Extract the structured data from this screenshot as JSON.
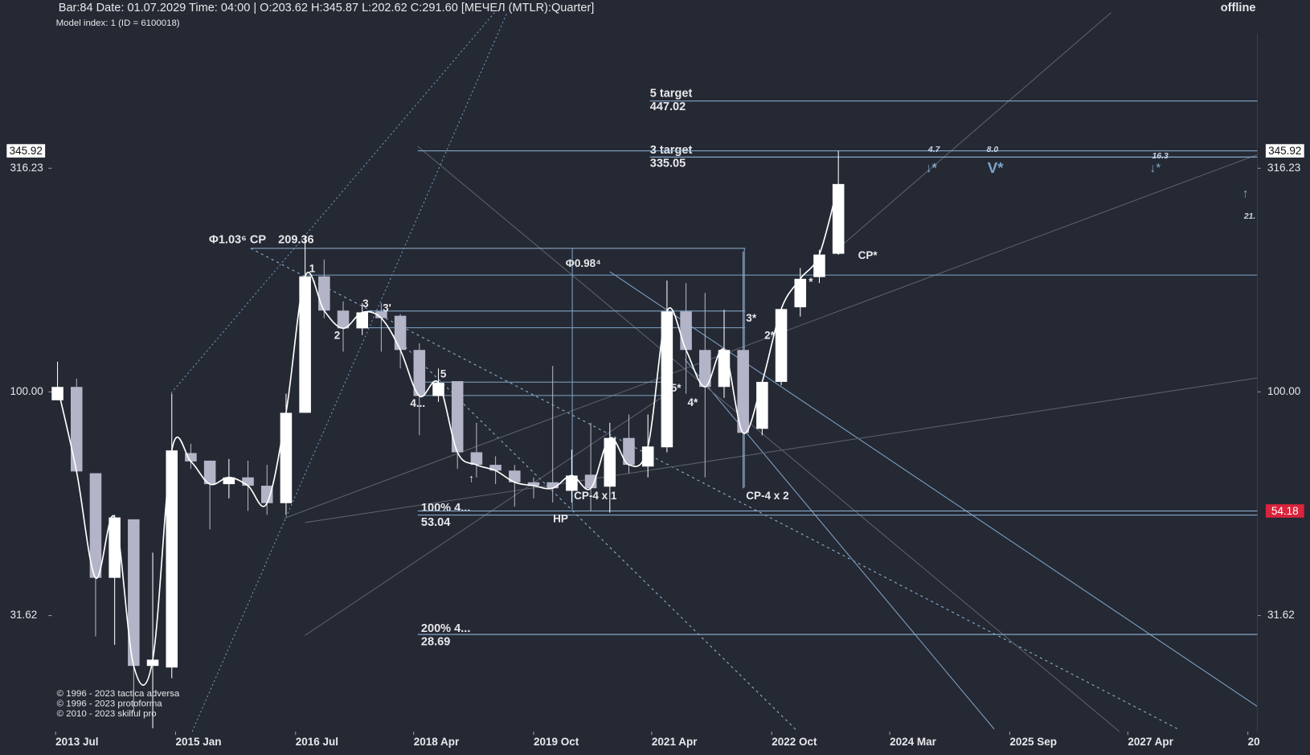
{
  "chart_data": {
    "type": "candlestick",
    "title": "Bar:84 Date: 01.07.2029 Time: 04:00 | O:203.62 H:345.87 L:202.62 C:291.60  [МЕЧЕЛ (MTLR):Quarter]",
    "subtitle": "Model index: 1  (ID = 6100018)",
    "status": "offline",
    "log_scale": true,
    "up_color": "#ffffff",
    "down_color": "#b3b4c7",
    "line_color": "#ffffff",
    "xlim": [
      -0.3,
      63
    ],
    "xticks": [
      {
        "value": -0.1,
        "label": "2013 Jul"
      },
      {
        "value": 6.2,
        "label": "2015 Jan"
      },
      {
        "value": 12.5,
        "label": "2016 Jul"
      },
      {
        "value": 18.7,
        "label": "2018 Apr"
      },
      {
        "value": 25,
        "label": "2019 Oct"
      },
      {
        "value": 31.2,
        "label": "2021 Apr"
      },
      {
        "value": 37.5,
        "label": "2022 Oct"
      },
      {
        "value": 43.7,
        "label": "2024 Mar"
      },
      {
        "value": 50,
        "label": "2025 Sep"
      },
      {
        "value": 56.2,
        "label": "2027 Apr"
      },
      {
        "value": 62.5,
        "label": "20"
      }
    ],
    "ylim": [
      17.4,
      752
    ],
    "yticks": [
      31.62,
      {
        "value": 100,
        "label": "100.00"
      },
      316.23
    ],
    "open": [
      95.8,
      102.6,
      65.8,
      38.4,
      51.9,
      24.4,
      24.2,
      73.0,
      70.2,
      62.2,
      64.4,
      61.7,
      56.4,
      89.8,
      181.3,
      152.0,
      138.7,
      151.3,
      148.0,
      124.1,
      97.9,
      105.7,
      73.3,
      68.7,
      66.7,
      62.8,
      62.8,
      60.1,
      65.3,
      61.4,
      78.9,
      68.1,
      75.2,
      151.3,
      124.1,
      102.6,
      124.1,
      82.7,
      105.3,
      154.6,
      180.6,
      203.62
    ],
    "high": [
      116.8,
      107.1,
      65.8,
      53.1,
      51.9,
      43.7,
      99.1,
      76.6,
      70.2,
      70.8,
      70.2,
      68.7,
      99.1,
      222.9,
      197.7,
      159.3,
      158.0,
      158.0,
      149.3,
      128.4,
      112.8,
      105.7,
      85.3,
      71.8,
      68.7,
      64.4,
      114.3,
      74.3,
      85.3,
      85.3,
      89.0,
      89.0,
      177.4,
      175.1,
      166.4,
      152.6,
      206.0,
      105.3,
      153.2,
      189.2,
      208.0,
      345.87
    ],
    "low": [
      95.8,
      66.4,
      28.4,
      27.2,
      19.3,
      17.7,
      22.9,
      67.3,
      49.3,
      57.8,
      54.2,
      53.1,
      53.1,
      89.8,
      146.2,
      123.0,
      134.0,
      123.0,
      112.8,
      80.0,
      95.0,
      67.3,
      64.4,
      62.2,
      55.4,
      57.8,
      56.6,
      56.6,
      54.2,
      53.7,
      65.8,
      64.4,
      73.3,
      99.1,
      64.4,
      97.0,
      60.9,
      80.0,
      103.5,
      147.4,
      175.1,
      202.62
    ],
    "close": [
      102.6,
      66.4,
      38.4,
      52.4,
      24.4,
      25.2,
      74.0,
      69.9,
      62.2,
      64.4,
      61.7,
      56.4,
      89.8,
      181.3,
      152.0,
      138.7,
      150.6,
      146.2,
      124.1,
      97.9,
      104.8,
      73.3,
      68.7,
      66.7,
      62.8,
      61.7,
      60.9,
      65.0,
      60.9,
      78.9,
      68.7,
      75.5,
      151.3,
      124.1,
      102.6,
      124.1,
      81.0,
      105.3,
      153.2,
      179.0,
      202.8,
      291.6
    ],
    "levels": [
      {
        "name": "5 target",
        "value": 447.02
      },
      {
        "name": "3 target",
        "value": 335.05
      },
      {
        "name": "Φ1.03⁶ CP",
        "value": 209.36
      },
      {
        "name": "100%  4...",
        "value": 53.04
      },
      {
        "name": "200%  4...",
        "value": 28.69
      }
    ],
    "price_markers": [
      {
        "value": 345.92,
        "color": "#ffffff"
      },
      {
        "value": 54.18,
        "color": "#d8243c"
      }
    ],
    "annotations": [
      "1",
      "2",
      "3",
      "3'",
      "4...",
      "5",
      "↑",
      "Φ0.98⁴",
      "HP",
      "CP-4 x 1",
      "5*",
      "4*",
      "3*",
      "2*",
      "CP-4 x 2",
      "*",
      "CP*",
      "4.7",
      "↓*",
      "8.0",
      "V*",
      "16.3",
      "↓*",
      "↑",
      "21."
    ],
    "notes": [
      "© 1996 - 2023 tactica adversa",
      "© 1996 - 2023 protoforma",
      "© 2010 - 2023 skilful pro"
    ]
  }
}
